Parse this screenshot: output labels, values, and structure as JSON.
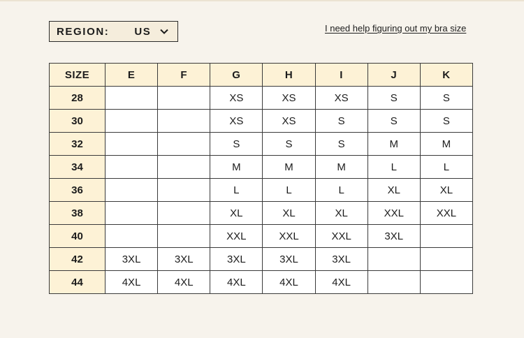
{
  "region": {
    "label": "REGION:",
    "value": "US"
  },
  "help_link": "I need help figuring out my bra size",
  "table": {
    "headers": [
      "SIZE",
      "E",
      "F",
      "G",
      "H",
      "I",
      "J",
      "K"
    ],
    "rows": [
      {
        "band": "28",
        "cells": [
          "",
          "",
          "XS",
          "XS",
          "XS",
          "S",
          "S"
        ]
      },
      {
        "band": "30",
        "cells": [
          "",
          "",
          "XS",
          "XS",
          "S",
          "S",
          "S"
        ]
      },
      {
        "band": "32",
        "cells": [
          "",
          "",
          "S",
          "S",
          "S",
          "M",
          "M"
        ]
      },
      {
        "band": "34",
        "cells": [
          "",
          "",
          "M",
          "M",
          "M",
          "L",
          "L"
        ]
      },
      {
        "band": "36",
        "cells": [
          "",
          "",
          "L",
          "L",
          "L",
          "XL",
          "XL"
        ]
      },
      {
        "band": "38",
        "cells": [
          "",
          "",
          "XL",
          "XL",
          "XL",
          "XXL",
          "XXL"
        ]
      },
      {
        "band": "40",
        "cells": [
          "",
          "",
          "XXL",
          "XXL",
          "XXL",
          "3XL",
          ""
        ]
      },
      {
        "band": "42",
        "cells": [
          "3XL",
          "3XL",
          "3XL",
          "3XL",
          "3XL",
          "",
          ""
        ]
      },
      {
        "band": "44",
        "cells": [
          "4XL",
          "4XL",
          "4XL",
          "4XL",
          "4XL",
          "",
          ""
        ]
      }
    ]
  },
  "colors": {
    "background": "#f7f3ec",
    "header_fill": "#fdf2d6",
    "border": "#3a3a3a"
  },
  "icons": {
    "region_dropdown": "chevron-down-icon"
  }
}
